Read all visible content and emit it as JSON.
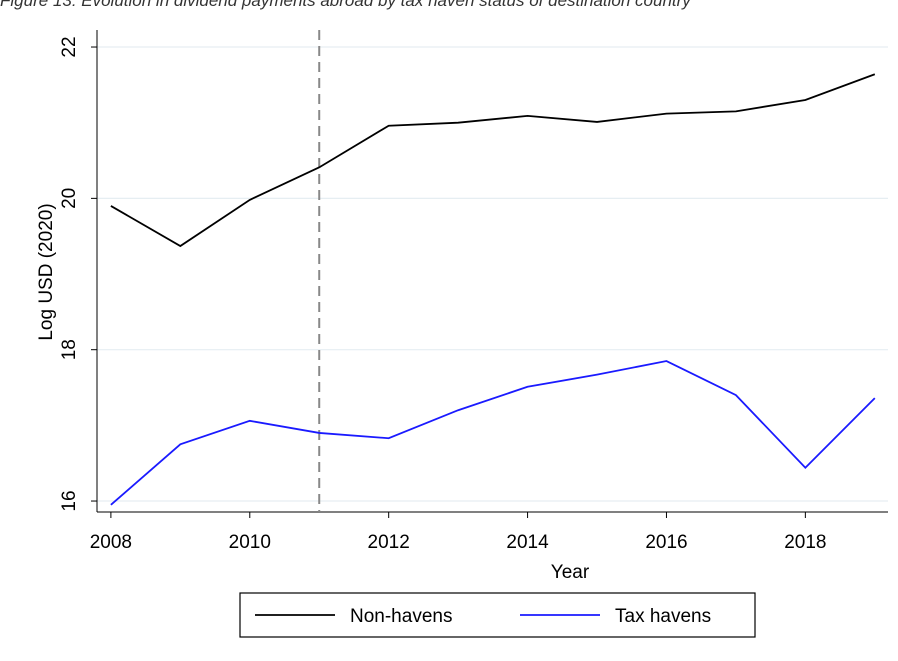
{
  "chart_data": {
    "type": "line",
    "title": "Figure 13: Evolution in dividend payments abroad by tax haven status of destination country",
    "x_label": "Year",
    "y_label": "Log USD (2020)",
    "x": [
      2008,
      2009,
      2010,
      2011,
      2012,
      2013,
      2014,
      2015,
      2016,
      2017,
      2018,
      2019
    ],
    "series": [
      {
        "name": "Non-havens",
        "color": "#000000",
        "values": [
          19.9,
          19.37,
          19.98,
          20.41,
          20.96,
          21.0,
          21.09,
          21.01,
          21.12,
          21.15,
          21.3,
          21.64
        ]
      },
      {
        "name": "Tax havens",
        "color": "#1a1aff",
        "values": [
          15.95,
          16.75,
          17.06,
          16.9,
          16.83,
          17.2,
          17.51,
          17.67,
          17.85,
          17.4,
          16.44,
          17.36
        ]
      }
    ],
    "xlim": [
      2007.8,
      2019.19
    ],
    "ylim": [
      15.855,
      22.225
    ],
    "xticks": [
      2008,
      2010,
      2012,
      2014,
      2016,
      2018
    ],
    "yticks": [
      16,
      18,
      20,
      22
    ],
    "vline": 2011,
    "grid": true,
    "legend": "bottom"
  }
}
